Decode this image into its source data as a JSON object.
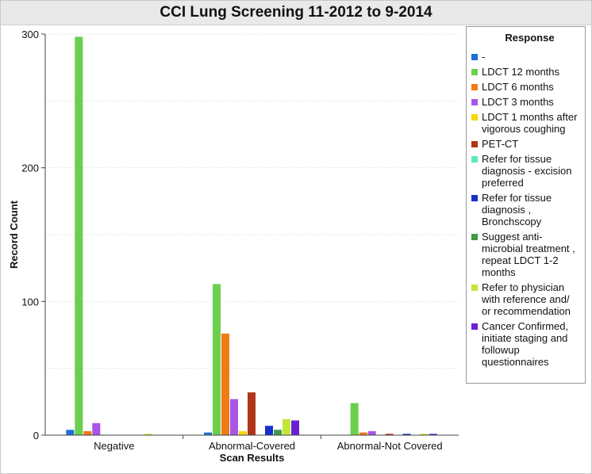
{
  "chart_data": {
    "type": "bar",
    "title": "CCI Lung Screening 11-2012 to 9-2014",
    "xlabel": "Scan Results",
    "ylabel": "Record Count",
    "ylim": [
      0,
      300
    ],
    "yticks": [
      "0",
      "100",
      "200",
      "300"
    ],
    "categories": [
      "Negative",
      "Abnormal-Covered",
      "Abnormal-Not Covered"
    ],
    "legend_title": "Response",
    "legend_position": "right",
    "grid": true,
    "series": [
      {
        "name": "-",
        "color": "#1f6fd1",
        "values": [
          4,
          2,
          0
        ]
      },
      {
        "name": "LDCT 12 months",
        "color": "#6bcf4e",
        "values": [
          298,
          113,
          24
        ]
      },
      {
        "name": "LDCT 6 months",
        "color": "#f07a14",
        "values": [
          3,
          76,
          2
        ]
      },
      {
        "name": "LDCT 3 months",
        "color": "#a855e8",
        "values": [
          9,
          27,
          3
        ]
      },
      {
        "name": "LDCT 1 months after vigorous coughing",
        "color": "#f5d800",
        "values": [
          0,
          3,
          0
        ]
      },
      {
        "name": "PET-CT",
        "color": "#b0361a",
        "values": [
          0,
          32,
          1
        ]
      },
      {
        "name": "Refer for tissue diagnosis - excision preferred",
        "color": "#5fe8c0",
        "values": [
          0,
          0,
          0
        ]
      },
      {
        "name": "Refer for tissue diagnosis , Bronchscopy",
        "color": "#1a2fc9",
        "values": [
          0,
          7,
          1
        ]
      },
      {
        "name": "Suggest anti-microbial treatment , repeat LDCT 1-2 months",
        "color": "#3f9b45",
        "values": [
          0,
          4,
          0
        ]
      },
      {
        "name": "Refer to physician with reference and/ or recommendation",
        "color": "#c2e636",
        "values": [
          1,
          12,
          1
        ]
      },
      {
        "name": "Cancer Confirmed, initiate staging and followup questionnaires",
        "color": "#6a1fd6",
        "values": [
          0,
          11,
          1
        ]
      }
    ]
  }
}
